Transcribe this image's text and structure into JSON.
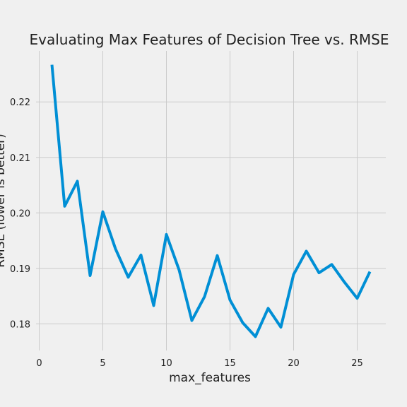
{
  "chart_data": {
    "type": "line",
    "title": "Evaluating Max Features of Decision Tree vs. RMSE",
    "xlabel": "max_features",
    "ylabel": "RMSE (lower is better)",
    "xlim": [
      -0.25,
      27.25
    ],
    "ylim": [
      0.1752,
      0.2292
    ],
    "xticks": [
      0,
      5,
      10,
      15,
      20,
      25
    ],
    "xtick_labels": [
      "0",
      "5",
      "10",
      "15",
      "20",
      "25"
    ],
    "yticks": [
      0.18,
      0.19,
      0.2,
      0.21,
      0.22
    ],
    "ytick_labels": [
      "0.18",
      "0.19",
      "0.20",
      "0.21",
      "0.22"
    ],
    "grid": true,
    "series": [
      {
        "color": "#008fd5",
        "x": [
          1,
          2,
          3,
          4,
          5,
          6,
          7,
          8,
          9,
          10,
          11,
          12,
          13,
          14,
          15,
          16,
          17,
          18,
          19,
          20,
          21,
          22,
          23,
          24,
          25,
          26
        ],
        "y": [
          0.2267,
          0.2012,
          0.2057,
          0.1887,
          0.2002,
          0.1935,
          0.1884,
          0.1924,
          0.1833,
          0.1961,
          0.1897,
          0.1806,
          0.1849,
          0.1923,
          0.1843,
          0.1802,
          0.1777,
          0.1828,
          0.1794,
          0.1889,
          0.1931,
          0.1892,
          0.1907,
          0.1875,
          0.1846,
          0.1894
        ]
      }
    ]
  }
}
